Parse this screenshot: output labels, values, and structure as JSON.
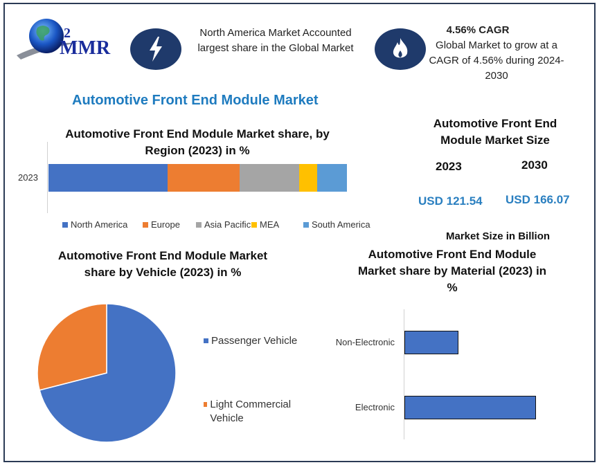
{
  "logo": {
    "text": "MMR"
  },
  "highlight_1": {
    "icon": "lightning-icon",
    "text": "North America Market Accounted largest share in the Global Market"
  },
  "highlight_2": {
    "icon": "flame-icon",
    "heading": "4.56% CAGR",
    "text": "Global Market to grow at a CAGR of 4.56% during 2024-2030"
  },
  "main_title": "Automotive Front End Module Market",
  "market_size": {
    "title": "Automotive Front End Module Market Size",
    "year_1": "2023",
    "value_1": "USD 121.54",
    "year_2": "2030",
    "value_2": "USD 166.07",
    "unit_note": "Market Size in Billion"
  },
  "colors": {
    "accent": "#1e7bbf",
    "navy": "#1f3a6b",
    "frame": "#2b3a55"
  },
  "chart_data": [
    {
      "type": "bar",
      "orientation": "horizontal",
      "stacked": true,
      "title": "Automotive Front End Module Market share, by Region (2023) in %",
      "categories": [
        "2023"
      ],
      "series": [
        {
          "name": "North America",
          "values": [
            40
          ],
          "color": "#4472c4"
        },
        {
          "name": "Europe",
          "values": [
            24
          ],
          "color": "#ed7d31"
        },
        {
          "name": "Asia Pacific",
          "values": [
            20
          ],
          "color": "#a5a5a5"
        },
        {
          "name": "MEA",
          "values": [
            6
          ],
          "color": "#ffc000"
        },
        {
          "name": "South America",
          "values": [
            10
          ],
          "color": "#5b9bd5"
        }
      ],
      "legend": "bottom",
      "grid": false
    },
    {
      "type": "pie",
      "title": "Automotive Front End Module Market share by Vehicle  (2023) in %",
      "labels": [
        "Passenger Vehicle",
        "Light Commercial Vehicle"
      ],
      "values": [
        71,
        29
      ],
      "colors": [
        "#4472c4",
        "#ed7d31"
      ],
      "legend": "right"
    },
    {
      "type": "bar",
      "orientation": "horizontal",
      "title": "Automotive Front End Module Market share by Material  (2023) in %",
      "categories": [
        "Non-Electronic",
        "Electronic"
      ],
      "values": [
        29,
        71
      ],
      "color": "#4472c4",
      "grid": false
    }
  ]
}
